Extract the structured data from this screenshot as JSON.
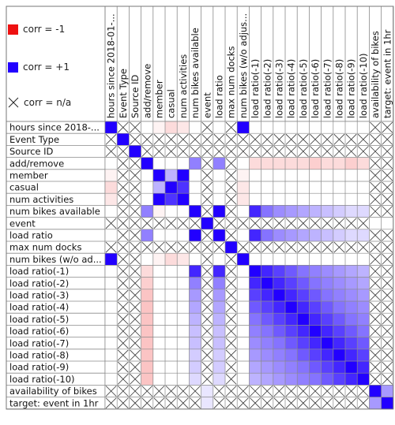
{
  "legend": {
    "neg_label": "corr = -1",
    "pos_label": "corr = +1",
    "na_label": "corr = n/a",
    "neg_color": "#ee1111",
    "pos_color": "#2200ff",
    "na_icon": "cross-icon"
  },
  "chart_data": {
    "type": "heatmap",
    "title": "",
    "color_scale": {
      "min": -1,
      "max": 1,
      "neg_color": "#ee1111",
      "zero_color": "#ffffff",
      "pos_color": "#2200ff"
    },
    "row_labels": [
      "hours since 2018-...",
      "Event Type",
      "Source ID",
      "add/remove",
      "member",
      "casual",
      "num activities",
      "num bikes available",
      "event",
      "load ratio",
      "max num docks",
      "num bikes (w/o ad...",
      "load ratio(-1)",
      "load ratio(-2)",
      "load ratio(-3)",
      "load ratio(-4)",
      "load ratio(-5)",
      "load ratio(-6)",
      "load ratio(-7)",
      "load ratio(-8)",
      "load ratio(-9)",
      "load ratio(-10)",
      "availability of bikes",
      "target: event in 1hr"
    ],
    "col_labels": [
      "hours since 2018-01-...",
      "Event Type",
      "Source ID",
      "add/remove",
      "member",
      "casual",
      "num activities",
      "num bikes available",
      "event",
      "load ratio",
      "max num docks",
      "num bikes (w/o adjus...",
      "load ratio(-1)",
      "load ratio(-2)",
      "load ratio(-3)",
      "load ratio(-4)",
      "load ratio(-5)",
      "load ratio(-6)",
      "load ratio(-7)",
      "load ratio(-8)",
      "load ratio(-9)",
      "load ratio(-10)",
      "availability of bikes",
      "target: event in 1hr"
    ],
    "values": [
      [
        1,
        null,
        null,
        0,
        -0.05,
        -0.15,
        -0.1,
        0,
        null,
        0,
        null,
        1,
        0,
        0,
        0,
        0,
        0,
        0,
        0,
        0,
        0,
        0,
        null,
        null
      ],
      [
        null,
        1,
        null,
        null,
        null,
        null,
        null,
        null,
        null,
        null,
        null,
        null,
        null,
        null,
        null,
        null,
        null,
        null,
        null,
        null,
        null,
        null,
        null,
        null
      ],
      [
        null,
        null,
        1,
        null,
        null,
        null,
        null,
        null,
        null,
        null,
        null,
        null,
        null,
        null,
        null,
        null,
        null,
        null,
        null,
        null,
        null,
        null,
        null,
        null
      ],
      [
        0,
        null,
        null,
        1,
        0,
        0,
        0,
        0.5,
        null,
        0.5,
        null,
        0,
        -0.15,
        -0.15,
        -0.15,
        -0.15,
        -0.15,
        -0.2,
        -0.15,
        -0.15,
        -0.2,
        -0.15,
        null,
        null
      ],
      [
        -0.05,
        null,
        null,
        0,
        1,
        0.3,
        1,
        0,
        null,
        0,
        null,
        -0.05,
        0,
        0,
        0,
        0,
        0,
        0,
        0,
        0,
        0,
        0,
        null,
        null
      ],
      [
        -0.15,
        null,
        null,
        0,
        0.3,
        1,
        0.8,
        0,
        null,
        0,
        null,
        -0.1,
        0,
        0,
        0,
        0,
        0,
        0,
        0,
        0,
        0,
        0,
        null,
        null
      ],
      [
        -0.1,
        null,
        null,
        0,
        1,
        0.8,
        1,
        0,
        null,
        0,
        null,
        -0.1,
        0,
        0,
        0,
        0,
        0,
        0,
        0,
        0,
        0,
        0,
        null,
        null
      ],
      [
        0,
        null,
        null,
        0.5,
        -0.05,
        0,
        0,
        1,
        null,
        1,
        null,
        0,
        0.85,
        0.55,
        0.45,
        0.4,
        0.35,
        0.3,
        0.25,
        0.2,
        0.15,
        0.15,
        null,
        null
      ],
      [
        null,
        null,
        null,
        null,
        null,
        null,
        null,
        null,
        1,
        null,
        null,
        null,
        null,
        null,
        null,
        null,
        null,
        null,
        null,
        null,
        null,
        null,
        0,
        0
      ],
      [
        0,
        null,
        null,
        0.5,
        0,
        0,
        0,
        1,
        null,
        1,
        null,
        0,
        0.85,
        0.55,
        0.45,
        0.4,
        0.35,
        0.3,
        0.25,
        0.2,
        0.15,
        0.15,
        null,
        null
      ],
      [
        null,
        null,
        null,
        null,
        null,
        null,
        null,
        null,
        null,
        null,
        1,
        null,
        null,
        null,
        null,
        null,
        null,
        null,
        null,
        null,
        null,
        null,
        null,
        null
      ],
      [
        1,
        null,
        null,
        0,
        -0.05,
        -0.15,
        -0.1,
        0,
        null,
        0,
        null,
        1,
        0,
        0,
        0,
        0,
        0,
        0,
        0,
        0,
        0,
        0,
        null,
        null
      ],
      [
        0,
        null,
        null,
        -0.15,
        0,
        0,
        0,
        0.85,
        null,
        0.85,
        null,
        0,
        1,
        0.85,
        0.75,
        0.65,
        0.55,
        0.5,
        0.45,
        0.4,
        0.35,
        0.3,
        null,
        null
      ],
      [
        0,
        null,
        null,
        -0.2,
        0,
        0,
        0,
        0.5,
        null,
        0.5,
        null,
        0,
        0.85,
        1,
        0.85,
        0.75,
        0.65,
        0.55,
        0.5,
        0.45,
        0.4,
        0.35,
        null,
        null
      ],
      [
        0,
        null,
        null,
        -0.25,
        0,
        0,
        0,
        0.4,
        null,
        0.4,
        null,
        0,
        0.75,
        0.85,
        1,
        0.85,
        0.75,
        0.65,
        0.55,
        0.5,
        0.45,
        0.4,
        null,
        null
      ],
      [
        0,
        null,
        null,
        -0.25,
        0,
        0,
        0,
        0.35,
        null,
        0.35,
        null,
        0,
        0.65,
        0.75,
        0.85,
        1,
        0.85,
        0.75,
        0.65,
        0.55,
        0.5,
        0.45,
        null,
        null
      ],
      [
        0,
        null,
        null,
        -0.25,
        0,
        0,
        0,
        0.3,
        null,
        0.3,
        null,
        0,
        0.55,
        0.65,
        0.75,
        0.85,
        1,
        0.85,
        0.75,
        0.65,
        0.55,
        0.5,
        null,
        null
      ],
      [
        0,
        null,
        null,
        -0.25,
        0,
        0,
        0,
        0.25,
        null,
        0.25,
        null,
        0,
        0.5,
        0.55,
        0.65,
        0.75,
        0.85,
        1,
        0.85,
        0.75,
        0.65,
        0.55,
        null,
        null
      ],
      [
        0,
        null,
        null,
        -0.25,
        0,
        0,
        0,
        0.25,
        null,
        0.25,
        null,
        0,
        0.45,
        0.5,
        0.55,
        0.65,
        0.75,
        0.85,
        1,
        0.85,
        0.75,
        0.65,
        null,
        null
      ],
      [
        0,
        null,
        null,
        -0.25,
        0,
        0,
        0,
        0.2,
        null,
        0.2,
        null,
        0,
        0.4,
        0.45,
        0.5,
        0.55,
        0.65,
        0.75,
        0.85,
        1,
        0.85,
        0.75,
        null,
        null
      ],
      [
        0,
        null,
        null,
        -0.25,
        0,
        0,
        0,
        0.2,
        null,
        0.2,
        null,
        0,
        0.35,
        0.4,
        0.45,
        0.5,
        0.55,
        0.65,
        0.75,
        0.85,
        1,
        0.85,
        null,
        null
      ],
      [
        0,
        null,
        null,
        -0.25,
        0,
        0,
        0,
        0.15,
        null,
        0.15,
        null,
        0,
        0.3,
        0.35,
        0.4,
        0.45,
        0.5,
        0.55,
        0.65,
        0.75,
        0.85,
        1,
        null,
        null
      ],
      [
        null,
        null,
        null,
        null,
        null,
        null,
        null,
        null,
        0.1,
        null,
        null,
        null,
        null,
        null,
        null,
        null,
        null,
        null,
        null,
        null,
        null,
        null,
        1,
        0.4
      ],
      [
        null,
        null,
        null,
        null,
        null,
        null,
        null,
        null,
        0.1,
        null,
        null,
        null,
        null,
        null,
        null,
        null,
        null,
        null,
        null,
        null,
        null,
        null,
        0.4,
        1
      ]
    ]
  }
}
